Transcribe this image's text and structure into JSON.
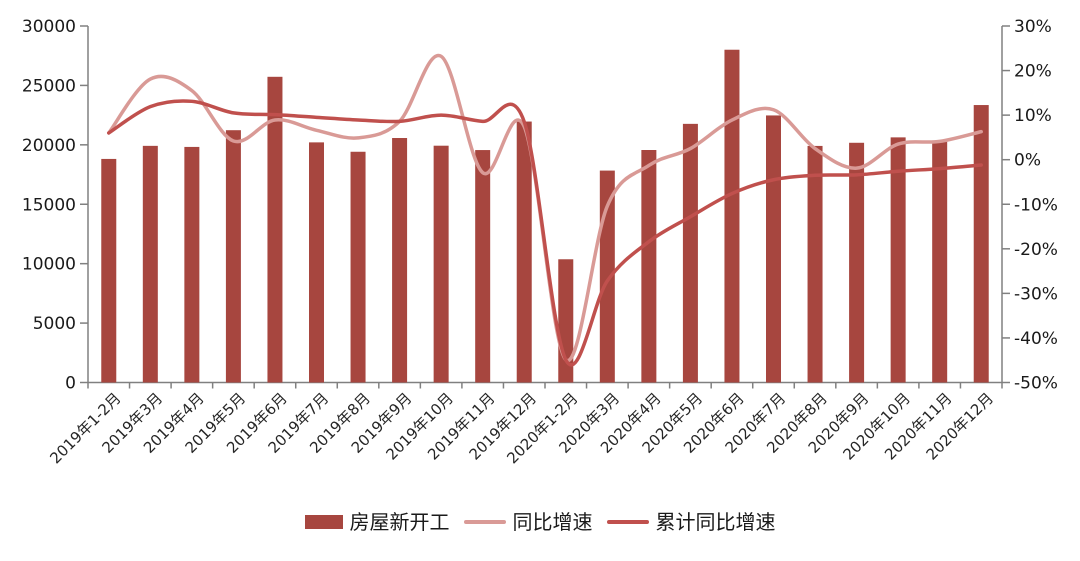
{
  "chart_data": {
    "type": "bar",
    "subtype": "combo-bar-line",
    "categories": [
      "2019年1-2月",
      "2019年3月",
      "2019年4月",
      "2019年5月",
      "2019年6月",
      "2019年7月",
      "2019年8月",
      "2019年9月",
      "2019年10月",
      "2019年11月",
      "2019年12月",
      "2020年1-2月",
      "2020年3月",
      "2020年4月",
      "2020年5月",
      "2020年6月",
      "2020年7月",
      "2020年8月",
      "2020年9月",
      "2020年10月",
      "2020年11月",
      "2020年12月"
    ],
    "series": [
      {
        "name": "房屋新开工",
        "type": "bar",
        "axis": "left",
        "color": "#A7463F",
        "values": [
          18814,
          19914,
          19824,
          21232,
          25725,
          20207,
          19417,
          20574,
          19927,
          19560,
          21960,
          10370,
          17833,
          19565,
          21765,
          28003,
          22473,
          19908,
          20173,
          20628,
          20367,
          23348
        ]
      },
      {
        "name": "同比增速",
        "type": "line",
        "axis": "right",
        "color": "#D99A96",
        "values": [
          6.0,
          18.1,
          15.5,
          4.2,
          8.9,
          6.6,
          4.9,
          8.6,
          23.2,
          -2.9,
          7.4,
          -44.9,
          -10.4,
          -1.3,
          2.5,
          8.9,
          11.2,
          2.5,
          -1.9,
          3.5,
          4.1,
          6.3
        ]
      },
      {
        "name": "累计同比增速",
        "type": "line",
        "axis": "right",
        "color": "#C0504D",
        "values": [
          6.0,
          11.9,
          13.1,
          10.5,
          10.1,
          9.5,
          8.9,
          8.6,
          10.0,
          8.6,
          8.5,
          -44.9,
          -27.2,
          -18.4,
          -12.8,
          -7.6,
          -4.5,
          -3.5,
          -3.4,
          -2.6,
          -2.0,
          -1.2
        ]
      }
    ],
    "left_axis": {
      "min": 0,
      "max": 30000,
      "step": 5000,
      "tick_labels": [
        "30000",
        "25000",
        "20000",
        "15000",
        "10000",
        "5000",
        "0"
      ]
    },
    "right_axis": {
      "min": -50,
      "max": 30,
      "step": 10,
      "tick_labels": [
        "30%",
        "20%",
        "10%",
        "0%",
        "-10%",
        "-20%",
        "-30%",
        "-40%",
        "-50%"
      ]
    },
    "grid": "off",
    "legend_position": "bottom",
    "axis_color": "#808080",
    "background_color": "#ffffff"
  }
}
